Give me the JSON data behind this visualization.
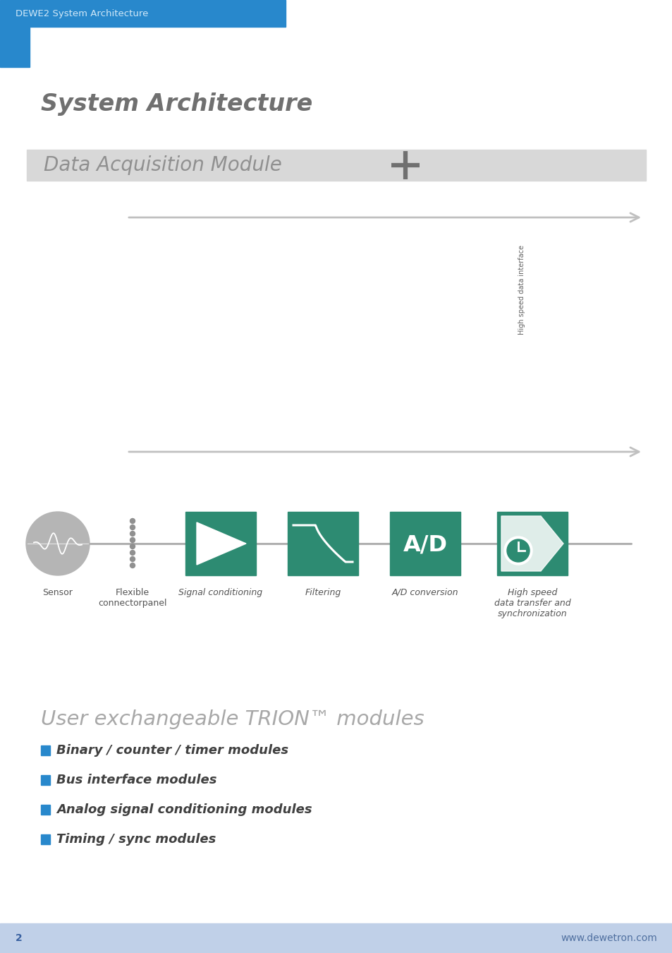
{
  "bg_color": "#ffffff",
  "header_bg": "#2888cc",
  "header_text": "DEWE2 System Architecture",
  "header_text_color": "#d0e8f8",
  "title": "System Architecture",
  "title_color": "#707070",
  "section_bar_bg": "#d8d8d8",
  "section_bar_text": "Data Acquisition Module",
  "section_bar_text_color": "#909090",
  "plus_color": "#707070",
  "arrow_color": "#c0c0c0",
  "teal_color": "#2d8b72",
  "sensor_color": "#b5b5b5",
  "pipeline_label_color": "#555555",
  "user_title": "User exchangeable TRION™ modules",
  "user_title_color": "#a8a8a8",
  "bullet_color": "#2888cc",
  "bullet_items": [
    "Binary / counter / timer modules",
    "Bus interface modules",
    "Analog signal conditioning modules",
    "Timing / sync modules"
  ],
  "bullet_text_color": "#404040",
  "footer_bg": "#c0d0e8",
  "footer_text": "www.dewetron.com",
  "footer_page": "2"
}
